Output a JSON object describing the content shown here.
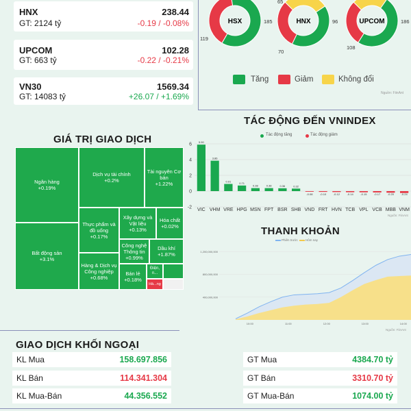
{
  "indices": [
    {
      "name": "HNX",
      "value": "238.44",
      "gt": "GT: 2124 tỷ",
      "change": "-0.19 / -0.08%",
      "dir": "down"
    },
    {
      "name": "UPCOM",
      "value": "102.28",
      "gt": "GT: 663 tỷ",
      "change": "-0.22 / -0.21%",
      "dir": "down"
    },
    {
      "name": "VN30",
      "value": "1569.34",
      "gt": "GT: 14083 tỷ",
      "change": "+26.07 / +1.69%",
      "dir": "up"
    }
  ],
  "donuts": [
    {
      "label": "HSX",
      "up": 185,
      "down": 119,
      "flat": 0,
      "up_label": "185",
      "down_label": "119"
    },
    {
      "label": "HNX",
      "up": 96,
      "down": 70,
      "flat": 65,
      "up_label": "96",
      "down_label": "70",
      "flat_label": "65"
    },
    {
      "label": "UPCOM",
      "up": 186,
      "down": 108,
      "flat": 84,
      "up_label": "186",
      "down_label": "108"
    }
  ],
  "donut_legend": {
    "up": "Tăng",
    "down": "Giảm",
    "flat": "Không đổi"
  },
  "source1": "Nguồn: FiinAnt",
  "colors": {
    "up": "#1aa84f",
    "down": "#e63946",
    "flat": "#f7d44a",
    "area_today": "#f7e08a",
    "line_prev": "#7fb3f0"
  },
  "gtgd_title": "GIÁ TRỊ GIAO DỊCH",
  "treemap": [
    {
      "name": "Ngân hàng",
      "pct": "+0.19%"
    },
    {
      "name": "Dịch vụ tài chính",
      "pct": "+0.2%"
    },
    {
      "name": "Tài nguyên Cơ bản",
      "pct": "+1.22%"
    },
    {
      "name": "Bất động sản",
      "pct": "+3.1%"
    },
    {
      "name": "Thực phẩm và đồ uống",
      "pct": "+0.17%"
    },
    {
      "name": "Xây dựng và Vật liệu",
      "pct": "+0.13%"
    },
    {
      "name": "Hóa chất",
      "pct": "+0.02%"
    },
    {
      "name": "Công nghệ Thông tin",
      "pct": "+0.99%"
    },
    {
      "name": "Dầu khí",
      "pct": "+1.87%"
    },
    {
      "name": "Hàng & Dịch vụ Công nghiệp",
      "pct": "+0.68%"
    },
    {
      "name": "Bán lẻ",
      "pct": "+0.18%"
    },
    {
      "name": "Điện, n...",
      "pct": ""
    },
    {
      "name": "Hà...ng",
      "pct": ""
    }
  ],
  "impact": {
    "title": "TÁC ĐỘNG ĐẾN VNINDEX",
    "legend_up": "Tác động tăng",
    "legend_down": "Tác động giảm",
    "source": "Nguồn: FiinAnt"
  },
  "liquidity": {
    "title": "THANH KHOẢN",
    "legend_prev": "Phiên trước",
    "legend_today": "Hôm nay",
    "source": "Nguồn: FiinAnt"
  },
  "chart_data": [
    {
      "type": "bar",
      "title": "TÁC ĐỘNG ĐẾN VNINDEX",
      "categories": [
        "VIC",
        "VHM",
        "VRE",
        "HPG",
        "MSN",
        "FPT",
        "BSR",
        "SHB",
        "VND",
        "FRT",
        "HVN",
        "TCB",
        "VPL",
        "VCB",
        "MBB",
        "VNM"
      ],
      "values": [
        5.9,
        3.86,
        0.91,
        0.71,
        0.38,
        0.38,
        0.36,
        0.32,
        -0.08,
        -0.1,
        -0.12,
        -0.14,
        -0.15,
        -0.17,
        -0.2,
        -0.24
      ],
      "value_labels": [
        "5.90",
        "3.86",
        "0.91",
        "0.71",
        "0.38",
        "0.38",
        "0.36",
        "0.32",
        "-0.08",
        "-0.10",
        "-0.12",
        "-0.14",
        "-0.15",
        "-0.17",
        "-0.20",
        "-0.24"
      ],
      "y_ticks": [
        "6",
        "4",
        "2",
        "0",
        "-2"
      ],
      "ylim": [
        -2,
        6
      ]
    },
    {
      "type": "area",
      "title": "THANH KHOẢN",
      "x_ticks": [
        "10:00",
        "11:00",
        "12:00",
        "13:00",
        "14:00",
        "15:00"
      ],
      "y_ticks": [
        "1,200,000,000",
        "800,000,000",
        "400,000,000"
      ],
      "ylim": [
        0,
        1300000000
      ],
      "series": [
        {
          "name": "Phiên trước",
          "values": [
            20000000,
            120000000,
            230000000,
            320000000,
            400000000,
            440000000,
            450000000,
            460000000,
            480000000,
            560000000,
            690000000,
            830000000,
            960000000,
            1060000000,
            1120000000,
            1150000000
          ]
        },
        {
          "name": "Hôm nay",
          "values": [
            10000000,
            60000000,
            120000000,
            170000000,
            220000000,
            250000000,
            270000000,
            280000000,
            300000000,
            400000000,
            520000000,
            630000000,
            700000000,
            760000000,
            770000000,
            780000000
          ]
        }
      ]
    }
  ],
  "foreign": {
    "title": "GIAO DỊCH KHỐI NGOẠI",
    "rows": [
      {
        "label": "KL Mua",
        "value": "158.697.856",
        "glabel": "GT Mua",
        "gvalue": "4384.70 tỷ",
        "color": "green"
      },
      {
        "label": "KL Bán",
        "value": "114.341.304",
        "glabel": "GT Bán",
        "gvalue": "3310.70 tỷ",
        "color": "red"
      },
      {
        "label": "KL Mua-Bán",
        "value": "44.356.552",
        "glabel": "GT Mua-Bán",
        "gvalue": "1074.00 tỷ",
        "color": "green"
      }
    ]
  }
}
